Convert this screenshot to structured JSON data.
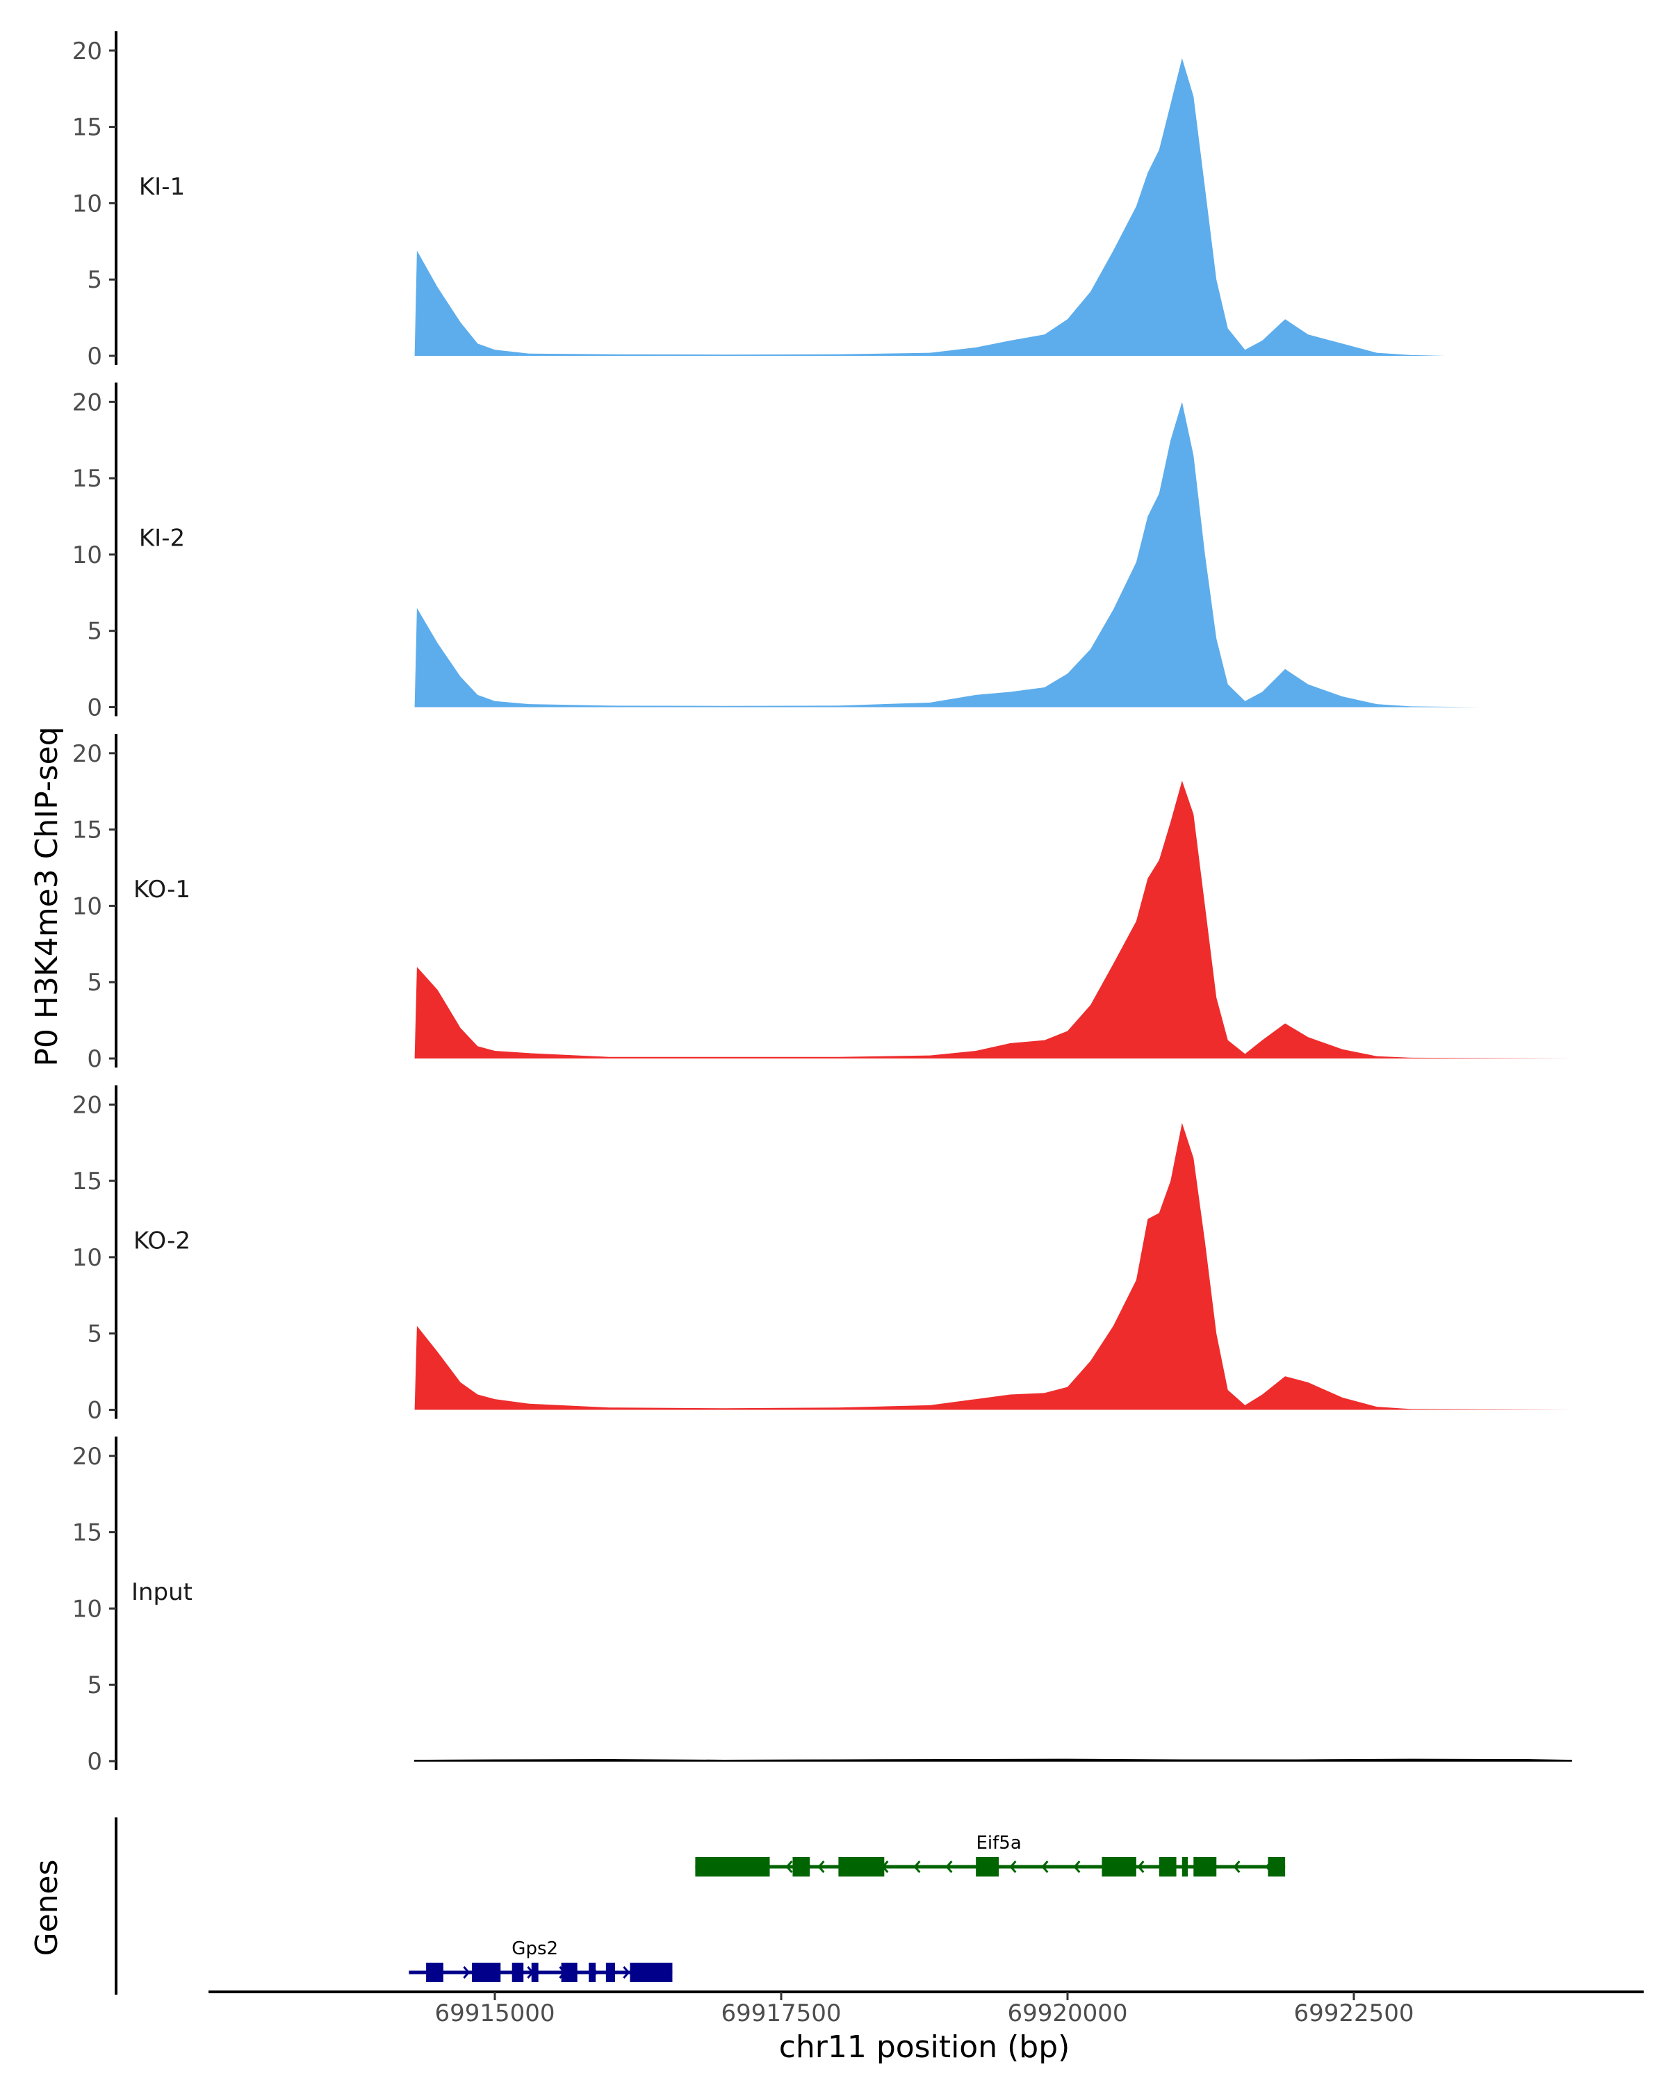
{
  "chart_data": {
    "type": "area",
    "ylabel": "P0 H3K4me3 ChIP-seq",
    "xlabel": "chr11 position (bp)",
    "xlim": [
      69912500,
      69925000
    ],
    "ylim": [
      0,
      21
    ],
    "y_ticks": [
      "0",
      "5",
      "10",
      "15",
      "20"
    ],
    "x_ticks": [
      {
        "value": 69915000,
        "label": "69915000"
      },
      {
        "value": 69917500,
        "label": "69917500"
      },
      {
        "value": 69920000,
        "label": "69920000"
      },
      {
        "value": 69922500,
        "label": "69922500"
      }
    ],
    "series": [
      {
        "name": "KI-1",
        "color": "#5DADEC",
        "x": [
          69914300,
          69914320,
          69914500,
          69914700,
          69914850,
          69915000,
          69915300,
          69916000,
          69917000,
          69918000,
          69918800,
          69919200,
          69919500,
          69919800,
          69920000,
          69920200,
          69920400,
          69920600,
          69920700,
          69920800,
          69920900,
          69921000,
          69921100,
          69921200,
          69921300,
          69921400,
          69921550,
          69921700,
          69921900,
          69922100,
          69922400,
          69922700,
          69923000,
          69923300
        ],
        "values": [
          0,
          6.9,
          4.5,
          2.2,
          0.8,
          0.4,
          0.15,
          0.1,
          0.08,
          0.1,
          0.2,
          0.55,
          1.0,
          1.4,
          2.4,
          4.2,
          6.9,
          9.8,
          12.0,
          13.5,
          16.5,
          19.5,
          17.0,
          11.0,
          5.0,
          1.8,
          0.4,
          1.0,
          2.4,
          1.4,
          0.8,
          0.2,
          0.05,
          0
        ]
      },
      {
        "name": "KI-2",
        "color": "#5DADEC",
        "x": [
          69914300,
          69914320,
          69914500,
          69914700,
          69914850,
          69915000,
          69915300,
          69916000,
          69917000,
          69918000,
          69918800,
          69919200,
          69919500,
          69919800,
          69920000,
          69920200,
          69920400,
          69920600,
          69920700,
          69920800,
          69920900,
          69921000,
          69921100,
          69921200,
          69921300,
          69921400,
          69921550,
          69921700,
          69921900,
          69922100,
          69922400,
          69922700,
          69923000,
          69923600
        ],
        "values": [
          0,
          6.5,
          4.2,
          2.0,
          0.8,
          0.4,
          0.2,
          0.1,
          0.08,
          0.1,
          0.3,
          0.8,
          1.0,
          1.3,
          2.2,
          3.8,
          6.4,
          9.5,
          12.5,
          14.0,
          17.5,
          20.0,
          16.5,
          10.0,
          4.5,
          1.5,
          0.4,
          1.0,
          2.5,
          1.5,
          0.7,
          0.2,
          0.05,
          0
        ]
      },
      {
        "name": "KO-1",
        "color": "#EE2C2C",
        "x": [
          69914300,
          69914320,
          69914500,
          69914700,
          69914850,
          69915000,
          69915300,
          69916000,
          69917000,
          69918000,
          69918800,
          69919200,
          69919500,
          69919800,
          69920000,
          69920200,
          69920400,
          69920600,
          69920700,
          69920800,
          69920900,
          69921000,
          69921100,
          69921200,
          69921300,
          69921400,
          69921550,
          69921700,
          69921900,
          69922100,
          69922400,
          69922700,
          69923000,
          69924400
        ],
        "values": [
          0,
          6.0,
          4.5,
          2.0,
          0.8,
          0.5,
          0.35,
          0.1,
          0.1,
          0.1,
          0.2,
          0.5,
          1.0,
          1.2,
          1.8,
          3.5,
          6.2,
          9.0,
          11.8,
          13.0,
          15.5,
          18.2,
          16.0,
          10.0,
          4.0,
          1.2,
          0.3,
          1.2,
          2.3,
          1.4,
          0.6,
          0.15,
          0.05,
          0
        ]
      },
      {
        "name": "KO-2",
        "color": "#EE2C2C",
        "x": [
          69914300,
          69914320,
          69914500,
          69914700,
          69914850,
          69915000,
          69915300,
          69916000,
          69917000,
          69918000,
          69918800,
          69919200,
          69919500,
          69919800,
          69920000,
          69920200,
          69920400,
          69920600,
          69920700,
          69920800,
          69920900,
          69921000,
          69921100,
          69921200,
          69921300,
          69921400,
          69921550,
          69921700,
          69921900,
          69922100,
          69922400,
          69922700,
          69923000,
          69924400
        ],
        "values": [
          0,
          5.5,
          3.8,
          1.8,
          1.0,
          0.7,
          0.4,
          0.15,
          0.1,
          0.15,
          0.3,
          0.7,
          1.0,
          1.1,
          1.5,
          3.2,
          5.5,
          8.5,
          12.5,
          12.9,
          15.0,
          18.8,
          16.5,
          11.0,
          5.0,
          1.3,
          0.3,
          1.0,
          2.2,
          1.8,
          0.8,
          0.2,
          0.05,
          0
        ]
      },
      {
        "name": "Input",
        "color": "#000000",
        "x": [
          69914300,
          69915000,
          69916000,
          69917000,
          69918000,
          69919000,
          69920000,
          69921000,
          69922000,
          69923000,
          69924000,
          69924400
        ],
        "values": [
          0.05,
          0.08,
          0.1,
          0.06,
          0.08,
          0.1,
          0.12,
          0.08,
          0.08,
          0.12,
          0.1,
          0.05
        ]
      }
    ],
    "genes_panel": {
      "ylabel": "Genes",
      "genes": [
        {
          "name": "Gps2",
          "color": "#00008B",
          "strand": "+",
          "start": 69914250,
          "end": 69916550,
          "exons": [
            [
              69914400,
              69914550
            ],
            [
              69914800,
              69915050
            ],
            [
              69915150,
              69915250
            ],
            [
              69915320,
              69915380
            ],
            [
              69915580,
              69915720
            ],
            [
              69915820,
              69915880
            ],
            [
              69915970,
              69916050
            ],
            [
              69916180,
              69916550
            ]
          ]
        },
        {
          "name": "Eif5a",
          "color": "#006400",
          "strand": "-",
          "start": 69916750,
          "end": 69921900,
          "exons": [
            [
              69916750,
              69917400
            ],
            [
              69917600,
              69917750
            ],
            [
              69918000,
              69918400
            ],
            [
              69919200,
              69919400
            ],
            [
              69920300,
              69920600
            ],
            [
              69920800,
              69920950
            ],
            [
              69921000,
              69921050
            ],
            [
              69921100,
              69921300
            ],
            [
              69921750,
              69921900
            ]
          ]
        }
      ]
    }
  }
}
